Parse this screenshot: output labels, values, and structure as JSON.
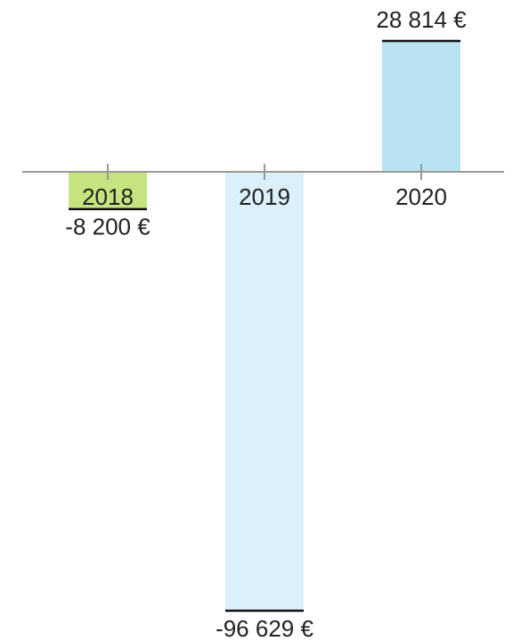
{
  "chart_data": {
    "type": "bar",
    "categories": [
      "2018",
      "2019",
      "2020"
    ],
    "values": [
      -8200,
      -96629,
      28814
    ],
    "value_labels": [
      "-8 200 €",
      "-96 629 €",
      "28 814 €"
    ],
    "colors": [
      "#c5e47f",
      "#dcf0fa",
      "#b9e3f3"
    ]
  }
}
